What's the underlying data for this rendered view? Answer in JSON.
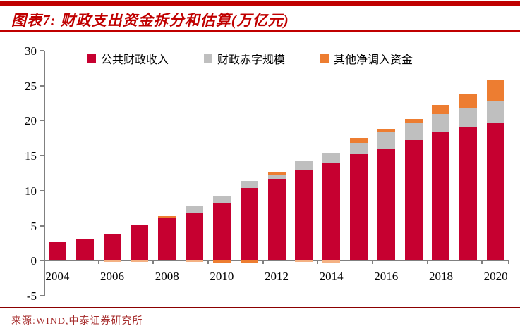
{
  "header": {
    "title": "图表7: 财政支出资金拆分和估算(万亿元)"
  },
  "footer": {
    "source": "来源:WIND,中泰证券研究所"
  },
  "colors": {
    "accent_red": "#C00000",
    "bar_red": "#C60030",
    "bar_gray": "#BFBFBF",
    "bar_orange": "#ED7D31",
    "bar_orange_light": "#F4B183",
    "axis_gray": "#808080",
    "bottom_rule_red": "#8B0000",
    "source_red": "#A52A2A"
  },
  "chart_data": {
    "type": "bar",
    "stacked": true,
    "title": "财政支出资金拆分和估算(万亿元)",
    "categories": [
      "2004",
      "2005",
      "2006",
      "2007",
      "2008",
      "2009",
      "2010",
      "2011",
      "2012",
      "2013",
      "2014",
      "2015",
      "2016",
      "2017",
      "2018",
      "2019",
      "2020"
    ],
    "series": [
      {
        "key": "revenue",
        "name": "公共财政收入",
        "color": "#C60030",
        "values": [
          2.64,
          3.16,
          3.88,
          5.13,
          6.13,
          6.85,
          8.31,
          10.39,
          11.73,
          12.92,
          14.04,
          15.23,
          15.96,
          17.26,
          18.34,
          19.04,
          19.6
        ]
      },
      {
        "key": "deficit",
        "name": "财政赤字规模",
        "color": "#BFBFBF",
        "values": [
          0,
          0,
          0,
          0,
          0,
          0.95,
          1.0,
          1.05,
          0.55,
          1.35,
          1.35,
          1.62,
          2.4,
          2.4,
          2.6,
          2.85,
          3.2
        ]
      },
      {
        "key": "other",
        "name": "其他净调入资金",
        "color": "#ED7D31",
        "values": [
          0,
          0,
          -0.2,
          -0.2,
          0.25,
          -0.15,
          -0.3,
          -0.35,
          0.4,
          -0.2,
          -0.25,
          0.7,
          0.5,
          0.6,
          1.3,
          2.0,
          3.1
        ]
      }
    ],
    "estimated_category": "2020",
    "ylim": [
      -5,
      30
    ],
    "y_ticks": [
      30,
      25,
      20,
      15,
      10,
      5,
      0,
      -5
    ],
    "x_tick_labels": [
      "2004",
      "2006",
      "2008",
      "2010",
      "2012",
      "2014",
      "2016",
      "2018",
      "2020"
    ],
    "legend_position": "top",
    "grid": false
  }
}
